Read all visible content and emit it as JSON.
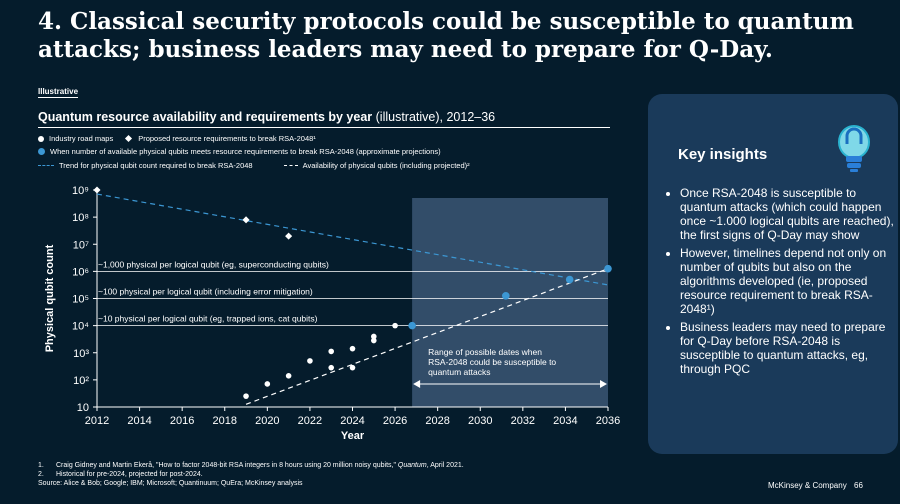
{
  "title": "4. Classical security protocols could be susceptible to quantum attacks; business leaders may need to prepare for Q-Day.",
  "illustrative_tag": "Illustrative",
  "subtitle_bold": "Quantum resource availability and requirements by year",
  "subtitle_rest": " (illustrative), 2012–36",
  "legend": {
    "industry": "Industry road maps",
    "proposed": "Proposed resource requirements to break RSA-2048¹",
    "meets": "When number of available physical qubits meets resource requirements to break RSA-2048 (approximate projections)",
    "trend": "Trend for physical qubit count required to break RSA-2048",
    "availability": "Availability of physical qubits (including projected)²"
  },
  "chart_data": {
    "type": "scatter",
    "xlabel": "Year",
    "ylabel": "Physical qubit count",
    "x_range": [
      2012,
      2036
    ],
    "y_range_log10": [
      1,
      9
    ],
    "x_ticks": [
      "2012",
      "2014",
      "2016",
      "2018",
      "2020",
      "2022",
      "2024",
      "2026",
      "2028",
      "2030",
      "2032",
      "2034",
      "2036"
    ],
    "y_ticks": [
      "10",
      "10²",
      "10³",
      "10⁴",
      "10⁵",
      "10⁶",
      "10⁷",
      "10⁸",
      "10⁹"
    ],
    "industry_roadmaps": [
      {
        "year": 2019,
        "log10": 1.4
      },
      {
        "year": 2020,
        "log10": 1.85
      },
      {
        "year": 2021,
        "log10": 2.15
      },
      {
        "year": 2022,
        "log10": 2.7
      },
      {
        "year": 2023,
        "log10": 3.05
      },
      {
        "year": 2023,
        "log10": 2.45
      },
      {
        "year": 2024,
        "log10": 3.15
      },
      {
        "year": 2024,
        "log10": 2.45
      },
      {
        "year": 2025,
        "log10": 3.45
      },
      {
        "year": 2025,
        "log10": 3.6
      },
      {
        "year": 2026,
        "log10": 4.0
      }
    ],
    "proposed_requirements": [
      {
        "year": 2012,
        "log10": 9.0
      },
      {
        "year": 2019,
        "log10": 7.9
      },
      {
        "year": 2021,
        "log10": 7.3
      }
    ],
    "meeting_points": [
      {
        "year": 2026.8,
        "log10": 4.0
      },
      {
        "year": 2031.2,
        "log10": 5.1
      },
      {
        "year": 2034.2,
        "log10": 5.7
      },
      {
        "year": 2036,
        "log10": 6.1
      }
    ],
    "trend_line": [
      {
        "year": 2012,
        "log10": 8.85
      },
      {
        "year": 2036,
        "log10": 5.5
      }
    ],
    "availability_line": [
      {
        "year": 2019,
        "log10": 1.1
      },
      {
        "year": 2036,
        "log10": 6.1
      }
    ],
    "reference_lines": [
      {
        "log10": 6.0,
        "label": "~1,000 physical per logical qubit (eg, superconducting qubits)"
      },
      {
        "log10": 5.0,
        "label": "~100 physical per logical qubit (including error mitigation)"
      },
      {
        "log10": 4.0,
        "label": "~10 physical per logical qubit (eg, trapped ions, cat qubits)"
      }
    ],
    "shaded_range_years": [
      2026.8,
      2036
    ],
    "shaded_range_label": "Range of possible dates when RSA-2048 could be susceptible to quantum attacks"
  },
  "insights": {
    "heading": "Key insights",
    "bullets": [
      "Once RSA-2048 is susceptible to quantum attacks (which could happen once ~1.000 logical qubits are reached), the first signs of Q-Day may show",
      "However, timelines depend not only on number of qubits but also on the algorithms developed (ie, proposed resource requirement to break RSA-2048¹)",
      "Business leaders may need to prepare for Q-Day before RSA-2048 is susceptible to quantum attacks, eg, through PQC"
    ]
  },
  "footnotes": {
    "n1": "1.",
    "f1_pre": "Craig Gidney and Martin Ekerå, \"How to factor 2048-bit RSA integers in 8 hours using 20 million noisy qubits,\" ",
    "f1_journal": "Quantum",
    "f1_post": ", April 2021.",
    "n2": "2.",
    "f2": "Historical for pre-2024, projected for post-2024.",
    "source": "Source: Alice & Bob; Google; IBM; Microsoft; Quantinuum; QuEra; McKinsey analysis"
  },
  "brand": "McKinsey & Company",
  "page_number": "66",
  "colors": {
    "background": "#051c2c",
    "accent_blue": "#3c97d3",
    "card": "#1a3a5a",
    "shade": "#3b5674"
  }
}
